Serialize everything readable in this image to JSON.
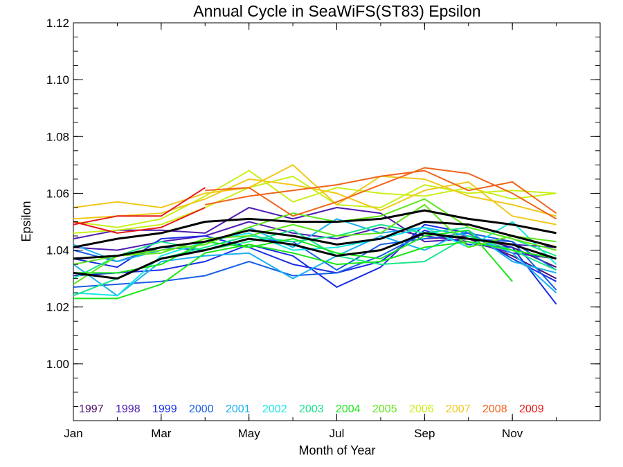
{
  "chart_data": {
    "type": "line",
    "title": "Annual Cycle in SeaWiFS(ST83) Epsilon",
    "xlabel": "Month of Year",
    "ylabel": "Epsilon",
    "xlim": [
      1,
      13
    ],
    "ylim": [
      0.98,
      1.12
    ],
    "x_ticks": [
      {
        "value": 1,
        "label": "Jan"
      },
      {
        "value": 3,
        "label": "Mar"
      },
      {
        "value": 5,
        "label": "May"
      },
      {
        "value": 7,
        "label": "Jul"
      },
      {
        "value": 9,
        "label": "Sep"
      },
      {
        "value": 11,
        "label": "Nov"
      }
    ],
    "y_ticks": [
      {
        "value": 1.0,
        "label": "1.00"
      },
      {
        "value": 1.02,
        "label": "1.02"
      },
      {
        "value": 1.04,
        "label": "1.04"
      },
      {
        "value": 1.06,
        "label": "1.06"
      },
      {
        "value": 1.08,
        "label": "1.08"
      },
      {
        "value": 1.1,
        "label": "1.10"
      },
      {
        "value": 1.12,
        "label": "1.12"
      }
    ],
    "grid": false,
    "legend_placement": "bottom, inside plot",
    "x": [
      1,
      2,
      3,
      4,
      5,
      6,
      7,
      8,
      9,
      10,
      11,
      12
    ],
    "series": [
      {
        "name": "1997",
        "color": "#4b0f6b",
        "values": [
          null,
          null,
          null,
          null,
          null,
          null,
          null,
          null,
          1.046,
          1.044,
          1.038,
          1.03
        ]
      },
      {
        "name": "1997",
        "color": "#4b0f6b",
        "values": [
          null,
          null,
          null,
          null,
          null,
          null,
          null,
          null,
          1.044,
          1.045,
          1.041,
          1.034
        ]
      },
      {
        "name": "1998",
        "color": "#4d1ab0",
        "values": [
          1.044,
          1.047,
          1.047,
          1.046,
          1.055,
          1.051,
          1.055,
          1.053,
          1.043,
          1.044,
          1.042,
          1.041
        ]
      },
      {
        "name": "1998",
        "color": "#4d1ab0",
        "values": [
          1.041,
          1.04,
          1.043,
          1.045,
          1.05,
          1.046,
          1.044,
          1.048,
          1.045,
          1.043,
          1.039,
          1.037
        ]
      },
      {
        "name": "1999",
        "color": "#1a2de6",
        "values": [
          1.031,
          1.032,
          1.033,
          1.036,
          1.042,
          1.038,
          1.027,
          1.034,
          1.049,
          1.046,
          1.037,
          1.029
        ]
      },
      {
        "name": "1999",
        "color": "#1a2de6",
        "values": [
          1.037,
          1.034,
          1.044,
          1.045,
          1.041,
          1.035,
          1.032,
          1.036,
          1.047,
          1.042,
          1.041,
          1.021
        ]
      },
      {
        "name": "2000",
        "color": "#1a5ee6",
        "values": [
          1.027,
          1.028,
          1.029,
          1.031,
          1.036,
          1.031,
          1.032,
          1.038,
          1.046,
          1.044,
          1.043,
          1.026
        ]
      },
      {
        "name": "2000",
        "color": "#1a5ee6",
        "values": [
          1.04,
          1.036,
          1.041,
          1.04,
          1.044,
          1.043,
          1.033,
          1.042,
          1.044,
          1.046,
          1.043,
          1.033
        ]
      },
      {
        "name": "2001",
        "color": "#1ab0f0",
        "values": [
          1.035,
          1.024,
          1.036,
          1.038,
          1.039,
          1.03,
          1.038,
          1.045,
          1.04,
          1.047,
          1.036,
          1.032
        ]
      },
      {
        "name": "2001",
        "color": "#1ab0f0",
        "values": [
          1.042,
          1.036,
          1.04,
          1.042,
          1.048,
          1.041,
          1.051,
          1.046,
          1.048,
          1.045,
          1.039,
          1.025
        ]
      },
      {
        "name": "2002",
        "color": "#1ae6e6",
        "values": [
          1.025,
          1.024,
          1.038,
          1.043,
          1.046,
          1.04,
          1.041,
          1.044,
          1.048,
          1.041,
          1.05,
          1.035
        ]
      },
      {
        "name": "2003",
        "color": "#1ae68c",
        "values": [
          1.03,
          1.038,
          1.043,
          1.04,
          1.043,
          1.047,
          1.038,
          1.035,
          1.036,
          1.045,
          1.04,
          1.033
        ]
      },
      {
        "name": "2003",
        "color": "#1ae68c",
        "values": [
          1.024,
          1.03,
          1.037,
          1.041,
          1.045,
          1.043,
          1.045,
          1.049,
          1.046,
          1.048,
          1.044,
          1.038
        ]
      },
      {
        "name": "2004",
        "color": "#1ae61a",
        "values": [
          1.023,
          1.023,
          1.028,
          1.039,
          1.042,
          1.039,
          1.035,
          1.036,
          1.041,
          1.043,
          1.04,
          1.037
        ]
      },
      {
        "name": "2004",
        "color": "#1ae61a",
        "values": [
          1.032,
          1.032,
          1.035,
          1.043,
          1.041,
          1.044,
          1.039,
          1.037,
          1.045,
          1.047,
          1.029,
          null
        ]
      },
      {
        "name": "2005",
        "color": "#5ee61a",
        "values": [
          1.035,
          1.038,
          1.04,
          1.042,
          1.048,
          1.053,
          1.05,
          1.052,
          1.058,
          1.048,
          1.044,
          1.04
        ]
      },
      {
        "name": "2005",
        "color": "#5ee61a",
        "values": [
          1.028,
          1.038,
          1.039,
          1.044,
          1.045,
          1.049,
          1.045,
          1.046,
          1.056,
          1.041,
          1.045,
          1.043
        ]
      },
      {
        "name": "2006",
        "color": "#c8f01a",
        "values": [
          1.05,
          1.048,
          1.051,
          1.059,
          1.068,
          1.057,
          1.062,
          1.06,
          1.059,
          1.062,
          1.058,
          1.06
        ]
      },
      {
        "name": "2006",
        "color": "#c8f01a",
        "values": [
          1.046,
          1.047,
          1.049,
          1.055,
          1.062,
          1.066,
          1.056,
          1.055,
          1.063,
          1.06,
          1.061,
          1.06
        ]
      },
      {
        "name": "2007",
        "color": "#f0c81a",
        "values": [
          1.055,
          1.057,
          1.055,
          1.06,
          1.062,
          1.07,
          1.056,
          1.066,
          1.065,
          1.059,
          1.056,
          1.052
        ]
      },
      {
        "name": "2007",
        "color": "#f0c81a",
        "values": [
          1.051,
          1.052,
          1.053,
          1.058,
          1.065,
          1.063,
          1.06,
          1.054,
          1.061,
          1.064,
          1.052,
          1.049
        ]
      },
      {
        "name": "2008",
        "color": "#f0641a",
        "values": [
          null,
          null,
          null,
          1.061,
          1.062,
          1.052,
          1.057,
          1.063,
          1.069,
          1.067,
          1.06,
          1.051
        ]
      },
      {
        "name": "2008",
        "color": "#f0641a",
        "values": [
          null,
          null,
          null,
          1.056,
          1.059,
          1.061,
          1.063,
          1.066,
          1.068,
          1.061,
          1.064,
          1.053
        ]
      },
      {
        "name": "2009",
        "color": "#e61a1a",
        "values": [
          1.049,
          1.052,
          1.052,
          1.062,
          null,
          null,
          null,
          null,
          null,
          null,
          null,
          null
        ]
      },
      {
        "name": "2009",
        "color": "#e61a1a",
        "values": [
          1.05,
          1.046,
          1.048,
          1.055,
          null,
          null,
          null,
          null,
          null,
          null,
          null,
          null
        ]
      },
      {
        "name": "",
        "color": "#000000",
        "width": 3,
        "values": [
          1.041,
          1.044,
          1.046,
          1.05,
          1.051,
          1.05,
          1.05,
          1.051,
          1.054,
          1.051,
          1.049,
          1.046
        ]
      },
      {
        "name": "",
        "color": "#000000",
        "width": 3,
        "values": [
          1.037,
          1.038,
          1.041,
          1.043,
          1.047,
          1.045,
          1.042,
          1.044,
          1.05,
          1.049,
          1.045,
          1.041
        ]
      },
      {
        "name": "",
        "color": "#000000",
        "width": 3,
        "values": [
          1.032,
          1.03,
          1.037,
          1.04,
          1.044,
          1.042,
          1.038,
          1.04,
          1.046,
          1.044,
          1.042,
          1.037
        ]
      }
    ],
    "legend": [
      {
        "label": "1997",
        "color": "#4b0f6b"
      },
      {
        "label": "1998",
        "color": "#4d1ab0"
      },
      {
        "label": "1999",
        "color": "#1a2de6"
      },
      {
        "label": "2000",
        "color": "#1a5ee6"
      },
      {
        "label": "2001",
        "color": "#1ab0f0"
      },
      {
        "label": "2002",
        "color": "#1ae6e6"
      },
      {
        "label": "2003",
        "color": "#1ae68c"
      },
      {
        "label": "2004",
        "color": "#1ae61a"
      },
      {
        "label": "2005",
        "color": "#5ee61a"
      },
      {
        "label": "2006",
        "color": "#c8f01a"
      },
      {
        "label": "2007",
        "color": "#f0c81a"
      },
      {
        "label": "2008",
        "color": "#f0641a"
      },
      {
        "label": "2009",
        "color": "#e61a1a"
      }
    ]
  }
}
